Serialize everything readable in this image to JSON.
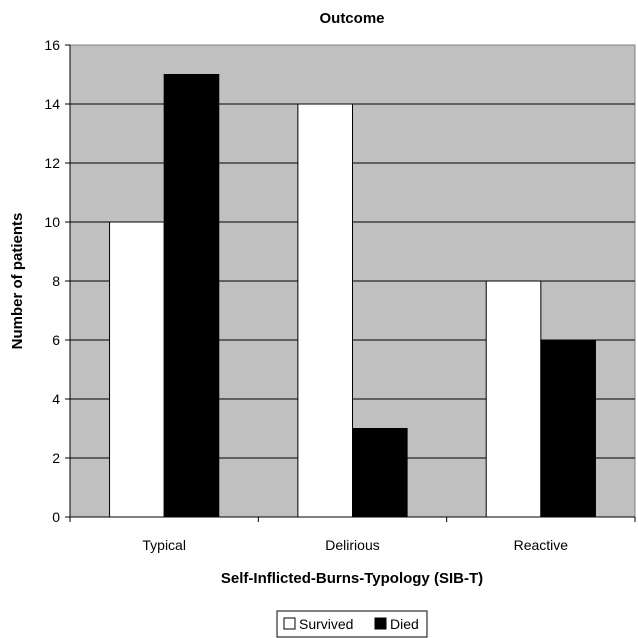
{
  "chart_data": {
    "type": "bar",
    "title": "Outcome",
    "xlabel": "Self-Inflicted-Burns-Typology (SIB-T)",
    "ylabel": "Number of patients",
    "categories": [
      "Typical",
      "Delirious",
      "Reactive"
    ],
    "series": [
      {
        "name": "Survived",
        "values": [
          10,
          14,
          8
        ],
        "color": "#ffffff"
      },
      {
        "name": "Died",
        "values": [
          15,
          3,
          6
        ],
        "color": "#000000"
      }
    ],
    "ylim": [
      0,
      16
    ],
    "yticks": [
      0,
      2,
      4,
      6,
      8,
      10,
      12,
      14,
      16
    ],
    "grid": true,
    "plot_background": "#c0c0c0",
    "legend_position": "bottom-center"
  }
}
